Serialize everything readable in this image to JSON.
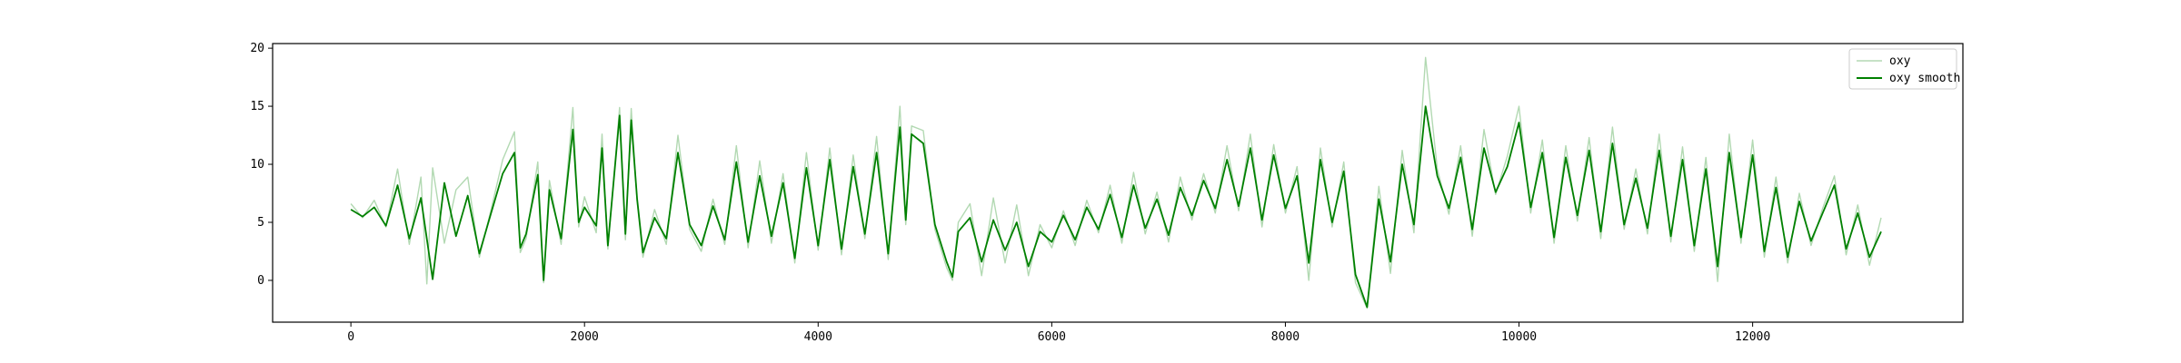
{
  "chart_data": {
    "type": "line",
    "title": "",
    "xlabel": "",
    "ylabel": "",
    "xlim": [
      -670,
      13800
    ],
    "ylim": [
      -3.6,
      20.4
    ],
    "x_ticks": [
      0,
      2000,
      4000,
      6000,
      8000,
      10000,
      12000
    ],
    "y_ticks": [
      0,
      5,
      10,
      15,
      20
    ],
    "x_tick_labels": [
      "0",
      "2000",
      "4000",
      "6000",
      "8000",
      "10000",
      "12000"
    ],
    "y_tick_labels": [
      "0",
      "5",
      "10",
      "15",
      "20"
    ],
    "grid": false,
    "legend_position": "top-right",
    "series": [
      {
        "name": "oxy",
        "color": "#008000",
        "alpha": 0.3,
        "points": [
          [
            0,
            6.6
          ],
          [
            100,
            5.4
          ],
          [
            200,
            6.9
          ],
          [
            300,
            4.6
          ],
          [
            400,
            9.6
          ],
          [
            500,
            3.1
          ],
          [
            600,
            8.9
          ],
          [
            650,
            -0.3
          ],
          [
            700,
            9.7
          ],
          [
            800,
            3.2
          ],
          [
            900,
            7.8
          ],
          [
            1000,
            8.9
          ],
          [
            1100,
            2.0
          ],
          [
            1200,
            6.1
          ],
          [
            1300,
            10.4
          ],
          [
            1400,
            12.8
          ],
          [
            1450,
            2.4
          ],
          [
            1500,
            3.6
          ],
          [
            1600,
            10.2
          ],
          [
            1650,
            -0.2
          ],
          [
            1700,
            8.6
          ],
          [
            1800,
            3.1
          ],
          [
            1900,
            14.9
          ],
          [
            1950,
            4.6
          ],
          [
            2000,
            7.2
          ],
          [
            2100,
            4.1
          ],
          [
            2150,
            12.6
          ],
          [
            2200,
            2.7
          ],
          [
            2300,
            14.9
          ],
          [
            2350,
            3.5
          ],
          [
            2400,
            14.8
          ],
          [
            2450,
            6.8
          ],
          [
            2500,
            2.0
          ],
          [
            2600,
            6.1
          ],
          [
            2700,
            3.1
          ],
          [
            2800,
            12.5
          ],
          [
            2900,
            4.4
          ],
          [
            3000,
            2.5
          ],
          [
            3100,
            7.0
          ],
          [
            3200,
            3.1
          ],
          [
            3300,
            11.6
          ],
          [
            3400,
            2.8
          ],
          [
            3500,
            10.3
          ],
          [
            3600,
            3.2
          ],
          [
            3700,
            9.2
          ],
          [
            3800,
            1.5
          ],
          [
            3900,
            11.0
          ],
          [
            4000,
            2.6
          ],
          [
            4100,
            11.4
          ],
          [
            4200,
            2.2
          ],
          [
            4300,
            10.8
          ],
          [
            4400,
            3.6
          ],
          [
            4500,
            12.4
          ],
          [
            4600,
            1.8
          ],
          [
            4700,
            15.0
          ],
          [
            4750,
            4.8
          ],
          [
            4800,
            13.3
          ],
          [
            4900,
            12.9
          ],
          [
            5000,
            4.4
          ],
          [
            5100,
            1.1
          ],
          [
            5150,
            0.0
          ],
          [
            5200,
            5.0
          ],
          [
            5300,
            6.6
          ],
          [
            5400,
            0.4
          ],
          [
            5500,
            7.1
          ],
          [
            5600,
            1.5
          ],
          [
            5700,
            6.5
          ],
          [
            5800,
            0.4
          ],
          [
            5900,
            4.8
          ],
          [
            6000,
            2.8
          ],
          [
            6100,
            6.0
          ],
          [
            6200,
            3.0
          ],
          [
            6300,
            6.9
          ],
          [
            6400,
            4.1
          ],
          [
            6500,
            8.2
          ],
          [
            6600,
            3.2
          ],
          [
            6700,
            9.3
          ],
          [
            6800,
            4.0
          ],
          [
            6900,
            7.6
          ],
          [
            7000,
            3.3
          ],
          [
            7100,
            8.9
          ],
          [
            7200,
            5.2
          ],
          [
            7300,
            9.2
          ],
          [
            7400,
            5.8
          ],
          [
            7500,
            11.6
          ],
          [
            7600,
            6.0
          ],
          [
            7700,
            12.6
          ],
          [
            7800,
            4.6
          ],
          [
            7900,
            11.7
          ],
          [
            8000,
            5.8
          ],
          [
            8100,
            9.8
          ],
          [
            8200,
            0.0
          ],
          [
            8300,
            11.4
          ],
          [
            8400,
            4.6
          ],
          [
            8500,
            10.2
          ],
          [
            8600,
            -0.2
          ],
          [
            8700,
            -2.4
          ],
          [
            8800,
            8.1
          ],
          [
            8900,
            0.6
          ],
          [
            9000,
            11.2
          ],
          [
            9100,
            4.1
          ],
          [
            9200,
            19.2
          ],
          [
            9300,
            9.6
          ],
          [
            9400,
            5.7
          ],
          [
            9500,
            11.6
          ],
          [
            9600,
            3.8
          ],
          [
            9700,
            13.0
          ],
          [
            9800,
            7.4
          ],
          [
            9900,
            10.7
          ],
          [
            10000,
            15.0
          ],
          [
            10100,
            5.8
          ],
          [
            10200,
            12.1
          ],
          [
            10300,
            3.2
          ],
          [
            10400,
            11.6
          ],
          [
            10500,
            5.1
          ],
          [
            10600,
            12.3
          ],
          [
            10700,
            3.6
          ],
          [
            10800,
            13.2
          ],
          [
            10900,
            4.4
          ],
          [
            11000,
            9.6
          ],
          [
            11100,
            4.0
          ],
          [
            11200,
            12.6
          ],
          [
            11300,
            3.3
          ],
          [
            11400,
            11.5
          ],
          [
            11500,
            2.5
          ],
          [
            11600,
            10.6
          ],
          [
            11700,
            -0.1
          ],
          [
            11800,
            12.6
          ],
          [
            11900,
            3.2
          ],
          [
            12000,
            12.1
          ],
          [
            12100,
            2.0
          ],
          [
            12200,
            8.9
          ],
          [
            12300,
            1.5
          ],
          [
            12400,
            7.5
          ],
          [
            12500,
            3.0
          ],
          [
            12600,
            6.2
          ],
          [
            12700,
            9.0
          ],
          [
            12800,
            2.2
          ],
          [
            12900,
            6.5
          ],
          [
            13000,
            1.3
          ],
          [
            13100,
            5.4
          ]
        ]
      },
      {
        "name": "oxy smooth",
        "color": "#008000",
        "alpha": 1.0,
        "points": [
          [
            0,
            6.1
          ],
          [
            100,
            5.5
          ],
          [
            200,
            6.3
          ],
          [
            300,
            4.7
          ],
          [
            400,
            8.2
          ],
          [
            500,
            3.6
          ],
          [
            600,
            7.1
          ],
          [
            700,
            0.1
          ],
          [
            800,
            8.4
          ],
          [
            900,
            3.8
          ],
          [
            1000,
            7.3
          ],
          [
            1100,
            2.3
          ],
          [
            1200,
            5.8
          ],
          [
            1300,
            9.2
          ],
          [
            1400,
            11.0
          ],
          [
            1450,
            2.8
          ],
          [
            1500,
            4.0
          ],
          [
            1600,
            9.1
          ],
          [
            1650,
            0.0
          ],
          [
            1700,
            7.8
          ],
          [
            1800,
            3.6
          ],
          [
            1900,
            13.0
          ],
          [
            1950,
            5.0
          ],
          [
            2000,
            6.3
          ],
          [
            2100,
            4.7
          ],
          [
            2150,
            11.4
          ],
          [
            2200,
            3.0
          ],
          [
            2300,
            14.2
          ],
          [
            2350,
            4.0
          ],
          [
            2400,
            13.8
          ],
          [
            2450,
            7.0
          ],
          [
            2500,
            2.4
          ],
          [
            2600,
            5.4
          ],
          [
            2700,
            3.6
          ],
          [
            2800,
            11.0
          ],
          [
            2900,
            4.8
          ],
          [
            3000,
            3.0
          ],
          [
            3100,
            6.4
          ],
          [
            3200,
            3.5
          ],
          [
            3300,
            10.2
          ],
          [
            3400,
            3.3
          ],
          [
            3500,
            9.0
          ],
          [
            3600,
            3.8
          ],
          [
            3700,
            8.4
          ],
          [
            3800,
            1.9
          ],
          [
            3900,
            9.7
          ],
          [
            4000,
            3.0
          ],
          [
            4100,
            10.4
          ],
          [
            4200,
            2.7
          ],
          [
            4300,
            9.8
          ],
          [
            4400,
            4.0
          ],
          [
            4500,
            11.0
          ],
          [
            4600,
            2.3
          ],
          [
            4700,
            13.2
          ],
          [
            4750,
            5.2
          ],
          [
            4800,
            12.6
          ],
          [
            4900,
            11.8
          ],
          [
            5000,
            4.8
          ],
          [
            5100,
            1.6
          ],
          [
            5150,
            0.3
          ],
          [
            5200,
            4.2
          ],
          [
            5300,
            5.4
          ],
          [
            5400,
            1.6
          ],
          [
            5500,
            5.2
          ],
          [
            5600,
            2.6
          ],
          [
            5700,
            5.0
          ],
          [
            5800,
            1.2
          ],
          [
            5900,
            4.2
          ],
          [
            6000,
            3.3
          ],
          [
            6100,
            5.6
          ],
          [
            6200,
            3.5
          ],
          [
            6300,
            6.3
          ],
          [
            6400,
            4.4
          ],
          [
            6500,
            7.4
          ],
          [
            6600,
            3.7
          ],
          [
            6700,
            8.2
          ],
          [
            6800,
            4.5
          ],
          [
            6900,
            7.0
          ],
          [
            7000,
            3.9
          ],
          [
            7100,
            8.0
          ],
          [
            7200,
            5.6
          ],
          [
            7300,
            8.6
          ],
          [
            7400,
            6.2
          ],
          [
            7500,
            10.4
          ],
          [
            7600,
            6.4
          ],
          [
            7700,
            11.4
          ],
          [
            7800,
            5.2
          ],
          [
            7900,
            10.8
          ],
          [
            8000,
            6.2
          ],
          [
            8100,
            9.0
          ],
          [
            8200,
            1.5
          ],
          [
            8300,
            10.4
          ],
          [
            8400,
            5.0
          ],
          [
            8500,
            9.4
          ],
          [
            8600,
            0.5
          ],
          [
            8700,
            -2.3
          ],
          [
            8800,
            7.0
          ],
          [
            8900,
            1.6
          ],
          [
            9000,
            10.0
          ],
          [
            9100,
            4.8
          ],
          [
            9200,
            15.0
          ],
          [
            9300,
            9.0
          ],
          [
            9400,
            6.2
          ],
          [
            9500,
            10.6
          ],
          [
            9600,
            4.4
          ],
          [
            9700,
            11.4
          ],
          [
            9800,
            7.6
          ],
          [
            9900,
            9.8
          ],
          [
            10000,
            13.6
          ],
          [
            10100,
            6.3
          ],
          [
            10200,
            11.0
          ],
          [
            10300,
            3.7
          ],
          [
            10400,
            10.6
          ],
          [
            10500,
            5.6
          ],
          [
            10600,
            11.2
          ],
          [
            10700,
            4.2
          ],
          [
            10800,
            11.8
          ],
          [
            10900,
            4.8
          ],
          [
            11000,
            8.8
          ],
          [
            11100,
            4.5
          ],
          [
            11200,
            11.2
          ],
          [
            11300,
            3.8
          ],
          [
            11400,
            10.4
          ],
          [
            11500,
            3.0
          ],
          [
            11600,
            9.6
          ],
          [
            11700,
            1.2
          ],
          [
            11800,
            11.0
          ],
          [
            11900,
            3.7
          ],
          [
            12000,
            10.8
          ],
          [
            12100,
            2.5
          ],
          [
            12200,
            8.0
          ],
          [
            12300,
            2.0
          ],
          [
            12400,
            6.8
          ],
          [
            12500,
            3.4
          ],
          [
            12600,
            5.8
          ],
          [
            12700,
            8.2
          ],
          [
            12800,
            2.7
          ],
          [
            12900,
            5.8
          ],
          [
            13000,
            2.0
          ],
          [
            13100,
            4.2
          ]
        ]
      }
    ]
  }
}
